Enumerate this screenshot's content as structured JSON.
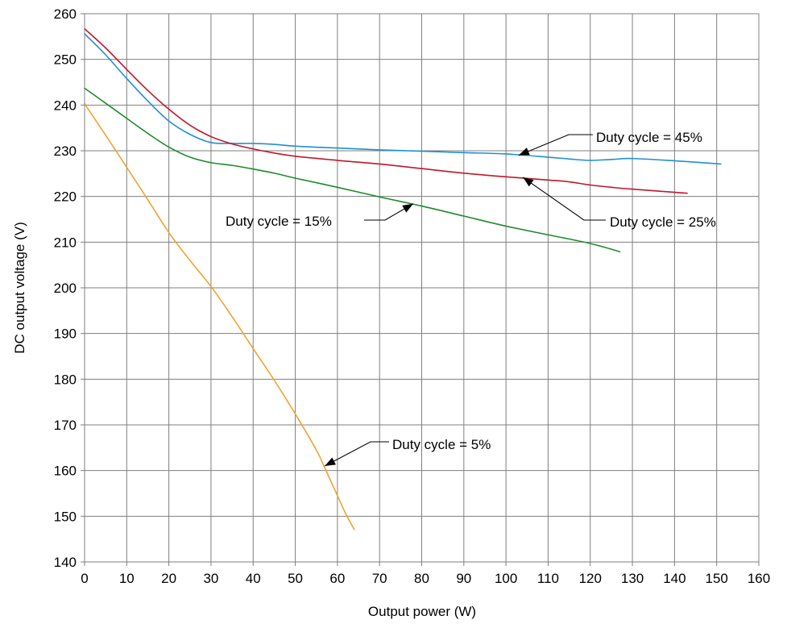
{
  "chart_data": {
    "type": "line",
    "title": "",
    "xlabel": "Output power (W)",
    "ylabel": "DC output voltage (V)",
    "xlim": [
      0,
      160
    ],
    "ylim": [
      140,
      260
    ],
    "x_ticks": [
      0,
      10,
      20,
      30,
      40,
      50,
      60,
      70,
      80,
      90,
      100,
      110,
      120,
      130,
      140,
      150,
      160
    ],
    "y_ticks": [
      140,
      150,
      160,
      170,
      180,
      190,
      200,
      210,
      220,
      230,
      240,
      250,
      260
    ],
    "grid": true,
    "legend": "none",
    "series": [
      {
        "name": "Duty cycle = 45%",
        "color": "#1f8fd6",
        "x": [
          0,
          5,
          10,
          15,
          20,
          25,
          30,
          35,
          40,
          45,
          50,
          60,
          70,
          80,
          90,
          100,
          110,
          115,
          120,
          125,
          130,
          140,
          151
        ],
        "y": [
          255.6,
          251,
          245.8,
          240.9,
          236.5,
          233.6,
          231.8,
          231.6,
          231.6,
          231.4,
          231.0,
          230.6,
          230.2,
          229.9,
          229.6,
          229.3,
          228.6,
          228.2,
          227.9,
          228.1,
          228.3,
          227.8,
          227.1
        ]
      },
      {
        "name": "Duty cycle = 25%",
        "color": "#c0172c",
        "x": [
          0,
          5,
          10,
          15,
          20,
          25,
          30,
          35,
          40,
          45,
          50,
          60,
          70,
          80,
          90,
          100,
          110,
          115,
          120,
          125,
          130,
          143
        ],
        "y": [
          256.7,
          252.5,
          247.8,
          243.2,
          239.1,
          235.6,
          233.1,
          231.5,
          230.4,
          229.5,
          228.8,
          227.9,
          227.1,
          226.1,
          225.1,
          224.3,
          223.6,
          223.2,
          222.5,
          222.0,
          221.6,
          220.7
        ]
      },
      {
        "name": "Duty cycle = 15%",
        "color": "#1e8a2e",
        "x": [
          0,
          5,
          10,
          15,
          20,
          25,
          30,
          35,
          40,
          45,
          50,
          60,
          70,
          80,
          90,
          100,
          110,
          120,
          127
        ],
        "y": [
          243.7,
          240.4,
          237.1,
          233.8,
          230.8,
          228.6,
          227.4,
          226.8,
          226.0,
          225.1,
          224.0,
          222.0,
          219.9,
          217.9,
          215.7,
          213.5,
          211.6,
          209.7,
          207.9
        ]
      },
      {
        "name": "Duty cycle = 5%",
        "color": "#f0a332",
        "x": [
          0,
          5,
          10,
          15,
          20,
          25,
          30,
          35,
          40,
          45,
          50,
          55,
          57,
          60,
          62,
          64
        ],
        "y": [
          240.3,
          233.4,
          226.4,
          219.3,
          212.1,
          206.0,
          200.3,
          193.7,
          186.7,
          179.8,
          172.4,
          164.5,
          160.6,
          154.5,
          150.5,
          147.1
        ]
      }
    ]
  },
  "annotations": [
    {
      "text": "Duty cycle = 45%",
      "color": "#000000"
    },
    {
      "text": "Duty cycle = 25%",
      "color": "#000000"
    },
    {
      "text": "Duty cycle = 15%",
      "color": "#000000"
    },
    {
      "text": "Duty cycle = 5%",
      "color": "#000000"
    }
  ]
}
